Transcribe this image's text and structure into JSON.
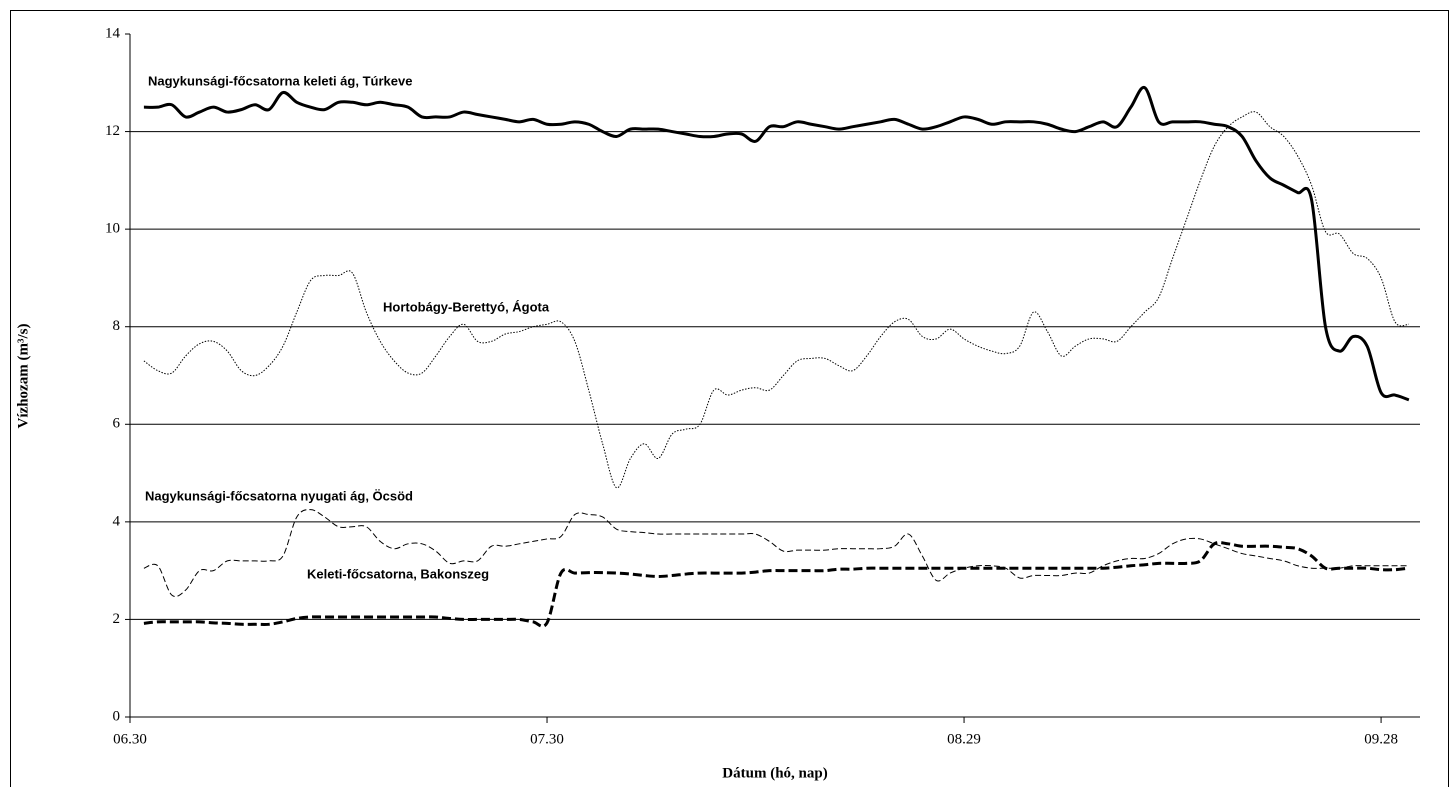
{
  "chart_data": {
    "type": "line",
    "xlabel": "Dátum (hó, nap)",
    "ylabel": "Vízhozam (m³/s)",
    "x": [
      1,
      2,
      3,
      4,
      5,
      6,
      7,
      8,
      9,
      10,
      11,
      12,
      13,
      14,
      15,
      16,
      17,
      18,
      19,
      20,
      21,
      22,
      23,
      24,
      25,
      26,
      27,
      28,
      29,
      30,
      31,
      32,
      33,
      34,
      35,
      36,
      37,
      38,
      39,
      40,
      41,
      42,
      43,
      44,
      45,
      46,
      47,
      48,
      49,
      50,
      51,
      52,
      53,
      54,
      55,
      56,
      57,
      58,
      59,
      60,
      61,
      62,
      63,
      64,
      65,
      66,
      67,
      68,
      69,
      70,
      71,
      72,
      73,
      74,
      75,
      76,
      77,
      78,
      79,
      80,
      81,
      82,
      83,
      84,
      85,
      86,
      87,
      88,
      89,
      90,
      91,
      92
    ],
    "xlim": [
      0,
      92.8
    ],
    "xticks": [
      {
        "value": 0,
        "label": "06.30"
      },
      {
        "value": 30,
        "label": "07.30"
      },
      {
        "value": 60,
        "label": "08.29"
      },
      {
        "value": 90,
        "label": "09.28"
      }
    ],
    "ylim": [
      0,
      14
    ],
    "yticks": [
      0,
      2,
      4,
      6,
      8,
      10,
      12,
      14
    ],
    "grid": true,
    "series": [
      {
        "name": "Nagykunsági-főcsatorna keleti ág, Túrkeve",
        "color": "#000000",
        "style": "bold-solid",
        "values": [
          12.5,
          12.5,
          12.55,
          12.3,
          12.4,
          12.5,
          12.4,
          12.45,
          12.55,
          12.45,
          12.8,
          12.6,
          12.5,
          12.45,
          12.6,
          12.6,
          12.55,
          12.6,
          12.55,
          12.5,
          12.3,
          12.3,
          12.3,
          12.4,
          12.35,
          12.3,
          12.25,
          12.2,
          12.25,
          12.15,
          12.15,
          12.2,
          12.15,
          12.0,
          11.9,
          12.05,
          12.05,
          12.05,
          12.0,
          11.95,
          11.9,
          11.9,
          11.95,
          11.95,
          11.8,
          12.1,
          12.1,
          12.2,
          12.15,
          12.1,
          12.05,
          12.1,
          12.15,
          12.2,
          12.25,
          12.15,
          12.05,
          12.1,
          12.2,
          12.3,
          12.25,
          12.15,
          12.2,
          12.2,
          12.2,
          12.15,
          12.05,
          12.0,
          12.1,
          12.2,
          12.1,
          12.5,
          12.9,
          12.2,
          12.2,
          12.2,
          12.2,
          12.15,
          12.1,
          11.9,
          11.4,
          11.05,
          10.9,
          10.75,
          10.6,
          8.0,
          7.5,
          7.8,
          7.6,
          6.65,
          6.6,
          6.5
        ]
      },
      {
        "name": "Hortobágy-Berettyó, Ágota",
        "color": "#000000",
        "style": "thin-dotted",
        "values": [
          7.3,
          7.1,
          7.05,
          7.4,
          7.65,
          7.7,
          7.5,
          7.1,
          7.0,
          7.2,
          7.6,
          8.3,
          8.95,
          9.05,
          9.05,
          9.1,
          8.3,
          7.7,
          7.3,
          7.05,
          7.05,
          7.4,
          7.8,
          8.05,
          7.7,
          7.7,
          7.85,
          7.9,
          8.0,
          8.05,
          8.1,
          7.7,
          6.7,
          5.6,
          4.7,
          5.3,
          5.6,
          5.3,
          5.8,
          5.9,
          6.0,
          6.7,
          6.6,
          6.7,
          6.75,
          6.7,
          7.0,
          7.3,
          7.35,
          7.35,
          7.2,
          7.1,
          7.4,
          7.8,
          8.1,
          8.15,
          7.8,
          7.75,
          7.95,
          7.75,
          7.6,
          7.5,
          7.45,
          7.6,
          8.3,
          7.9,
          7.4,
          7.6,
          7.75,
          7.75,
          7.7,
          8.0,
          8.3,
          8.6,
          9.4,
          10.2,
          11.0,
          11.7,
          12.1,
          12.3,
          12.4,
          12.1,
          11.9,
          11.5,
          10.9,
          9.95,
          9.9,
          9.5,
          9.4,
          9.0,
          8.1,
          8.05
        ]
      },
      {
        "name": "Nagykunsági-főcsatorna nyugati ág, Öcsöd",
        "color": "#000000",
        "style": "thin-dashed",
        "values": [
          3.05,
          3.1,
          2.5,
          2.6,
          3.0,
          3.0,
          3.2,
          3.2,
          3.2,
          3.2,
          3.3,
          4.1,
          4.25,
          4.1,
          3.9,
          3.9,
          3.9,
          3.6,
          3.45,
          3.55,
          3.55,
          3.4,
          3.15,
          3.2,
          3.2,
          3.5,
          3.5,
          3.55,
          3.6,
          3.65,
          3.7,
          4.15,
          4.15,
          4.1,
          3.85,
          3.8,
          3.78,
          3.75,
          3.75,
          3.75,
          3.75,
          3.75,
          3.75,
          3.75,
          3.75,
          3.6,
          3.4,
          3.42,
          3.42,
          3.42,
          3.45,
          3.45,
          3.45,
          3.45,
          3.5,
          3.75,
          3.3,
          2.8,
          2.95,
          3.05,
          3.1,
          3.1,
          3.05,
          2.85,
          2.9,
          2.9,
          2.9,
          2.95,
          2.95,
          3.1,
          3.2,
          3.25,
          3.25,
          3.35,
          3.55,
          3.65,
          3.65,
          3.55,
          3.45,
          3.35,
          3.3,
          3.25,
          3.2,
          3.1,
          3.05,
          3.05,
          3.05,
          3.1,
          3.1,
          3.1,
          3.1,
          3.1
        ]
      },
      {
        "name": "Keleti-főcsatorna, Bakonszeg",
        "color": "#000000",
        "style": "bold-dashed",
        "values": [
          1.92,
          1.95,
          1.95,
          1.95,
          1.95,
          1.93,
          1.92,
          1.9,
          1.9,
          1.9,
          1.95,
          2.02,
          2.05,
          2.05,
          2.05,
          2.05,
          2.05,
          2.05,
          2.05,
          2.05,
          2.05,
          2.05,
          2.02,
          2.0,
          2.0,
          2.0,
          2.0,
          2.0,
          1.95,
          1.93,
          2.95,
          2.95,
          2.96,
          2.96,
          2.95,
          2.93,
          2.9,
          2.88,
          2.9,
          2.93,
          2.95,
          2.95,
          2.95,
          2.95,
          2.97,
          3.0,
          3.0,
          3.0,
          3.0,
          3.0,
          3.03,
          3.03,
          3.05,
          3.05,
          3.05,
          3.05,
          3.05,
          3.05,
          3.05,
          3.05,
          3.05,
          3.05,
          3.05,
          3.05,
          3.05,
          3.05,
          3.05,
          3.05,
          3.05,
          3.05,
          3.07,
          3.1,
          3.12,
          3.15,
          3.15,
          3.15,
          3.2,
          3.55,
          3.55,
          3.5,
          3.5,
          3.5,
          3.48,
          3.45,
          3.3,
          3.05,
          3.05,
          3.05,
          3.05,
          3.02,
          3.02,
          3.05
        ]
      }
    ]
  }
}
